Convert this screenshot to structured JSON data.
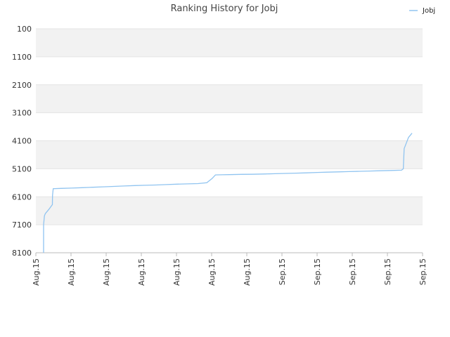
{
  "chart_data": {
    "type": "line",
    "title": "Ranking History for Jobj",
    "xlabel": "",
    "ylabel": "",
    "y_inverted": true,
    "ylim": [
      100,
      8100
    ],
    "y_ticks": [
      "100",
      "1100",
      "2100",
      "3100",
      "4100",
      "5100",
      "6100",
      "7100",
      "8100"
    ],
    "x_ticks": [
      "Aug.15",
      "Aug.15",
      "Aug.15",
      "Aug.15",
      "Aug.15",
      "Aug.15",
      "Aug.15",
      "Sep.15",
      "Sep.15",
      "Sep.15",
      "Sep.15",
      "Sep.15"
    ],
    "grid": "horizontal alternating bands",
    "legend_position": "top-right",
    "series": [
      {
        "name": "Jobj",
        "color": "#90c4f0",
        "points": [
          [
            0.0,
            8100
          ],
          [
            0.0,
            7100
          ],
          [
            0.05,
            6780
          ],
          [
            0.1,
            6700
          ],
          [
            0.3,
            6550
          ],
          [
            0.5,
            6380
          ],
          [
            0.51,
            6050
          ],
          [
            0.55,
            5810
          ],
          [
            1.0,
            5800
          ],
          [
            1.6,
            5790
          ],
          [
            2.2,
            5775
          ],
          [
            2.8,
            5760
          ],
          [
            3.4,
            5745
          ],
          [
            4.0,
            5730
          ],
          [
            4.6,
            5715
          ],
          [
            5.2,
            5700
          ],
          [
            5.8,
            5690
          ],
          [
            6.4,
            5680
          ],
          [
            7.0,
            5665
          ],
          [
            7.6,
            5650
          ],
          [
            8.2,
            5640
          ],
          [
            8.8,
            5630
          ],
          [
            9.3,
            5600
          ],
          [
            9.6,
            5450
          ],
          [
            9.8,
            5320
          ],
          [
            10.2,
            5315
          ],
          [
            10.6,
            5310
          ],
          [
            11.3,
            5300
          ],
          [
            11.9,
            5295
          ],
          [
            12.6,
            5285
          ],
          [
            13.2,
            5275
          ],
          [
            13.8,
            5265
          ],
          [
            14.4,
            5255
          ],
          [
            15.0,
            5245
          ],
          [
            15.6,
            5230
          ],
          [
            16.2,
            5220
          ],
          [
            16.8,
            5210
          ],
          [
            17.4,
            5200
          ],
          [
            18.0,
            5190
          ],
          [
            18.6,
            5180
          ],
          [
            19.2,
            5170
          ],
          [
            19.8,
            5160
          ],
          [
            20.4,
            5150
          ],
          [
            20.5,
            5100
          ],
          [
            20.55,
            4380
          ],
          [
            20.8,
            3980
          ],
          [
            21.0,
            3830
          ]
        ]
      }
    ]
  }
}
